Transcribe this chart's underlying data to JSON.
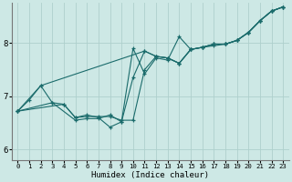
{
  "xlabel": "Humidex (Indice chaleur)",
  "bg_color": "#cde8e5",
  "line_color": "#1a6b6b",
  "grid_color": "#aed0cc",
  "xlim": [
    -0.5,
    23.5
  ],
  "ylim": [
    5.8,
    8.75
  ],
  "yticks": [
    6,
    7,
    8
  ],
  "xticks": [
    0,
    1,
    2,
    3,
    4,
    5,
    6,
    7,
    8,
    9,
    10,
    11,
    12,
    13,
    14,
    15,
    16,
    17,
    18,
    19,
    20,
    21,
    22,
    23
  ],
  "series": [
    [
      [
        0,
        6.72
      ],
      [
        1,
        6.93
      ],
      [
        2,
        7.2
      ],
      [
        3,
        6.88
      ],
      [
        4,
        6.85
      ],
      [
        5,
        6.6
      ],
      [
        6,
        6.65
      ],
      [
        7,
        6.6
      ],
      [
        8,
        6.42
      ],
      [
        9,
        6.52
      ],
      [
        10,
        7.35
      ],
      [
        11,
        7.85
      ],
      [
        12,
        7.75
      ],
      [
        13,
        7.72
      ],
      [
        14,
        7.62
      ],
      [
        15,
        7.88
      ],
      [
        16,
        7.92
      ],
      [
        17,
        7.98
      ],
      [
        18,
        7.98
      ],
      [
        19,
        8.05
      ],
      [
        20,
        8.2
      ],
      [
        21,
        8.42
      ],
      [
        22,
        8.6
      ],
      [
        23,
        8.68
      ]
    ],
    [
      [
        0,
        6.72
      ],
      [
        2,
        7.2
      ],
      [
        11,
        7.85
      ],
      [
        12,
        7.75
      ],
      [
        13,
        7.72
      ],
      [
        14,
        7.62
      ],
      [
        15,
        7.88
      ],
      [
        16,
        7.92
      ],
      [
        17,
        7.98
      ],
      [
        18,
        7.98
      ],
      [
        19,
        8.05
      ],
      [
        20,
        8.2
      ],
      [
        21,
        8.42
      ],
      [
        22,
        8.6
      ],
      [
        23,
        8.68
      ]
    ],
    [
      [
        0,
        6.72
      ],
      [
        4,
        6.85
      ],
      [
        5,
        6.6
      ],
      [
        6,
        6.62
      ],
      [
        7,
        6.62
      ],
      [
        8,
        6.62
      ],
      [
        9,
        6.55
      ],
      [
        10,
        6.55
      ],
      [
        11,
        7.5
      ],
      [
        12,
        7.75
      ],
      [
        13,
        7.72
      ],
      [
        14,
        7.62
      ],
      [
        15,
        7.88
      ],
      [
        16,
        7.92
      ],
      [
        17,
        7.98
      ],
      [
        18,
        7.98
      ],
      [
        19,
        8.05
      ],
      [
        20,
        8.2
      ],
      [
        21,
        8.42
      ],
      [
        22,
        8.6
      ],
      [
        23,
        8.68
      ]
    ],
    [
      [
        0,
        6.72
      ],
      [
        3,
        6.88
      ],
      [
        5,
        6.55
      ],
      [
        6,
        6.58
      ],
      [
        7,
        6.58
      ],
      [
        8,
        6.65
      ],
      [
        9,
        6.52
      ],
      [
        10,
        7.9
      ],
      [
        11,
        7.42
      ],
      [
        12,
        7.72
      ],
      [
        13,
        7.68
      ],
      [
        14,
        8.12
      ],
      [
        15,
        7.88
      ],
      [
        16,
        7.92
      ],
      [
        17,
        7.95
      ],
      [
        18,
        7.98
      ],
      [
        19,
        8.05
      ],
      [
        20,
        8.2
      ],
      [
        21,
        8.42
      ],
      [
        22,
        8.6
      ],
      [
        23,
        8.68
      ]
    ]
  ]
}
